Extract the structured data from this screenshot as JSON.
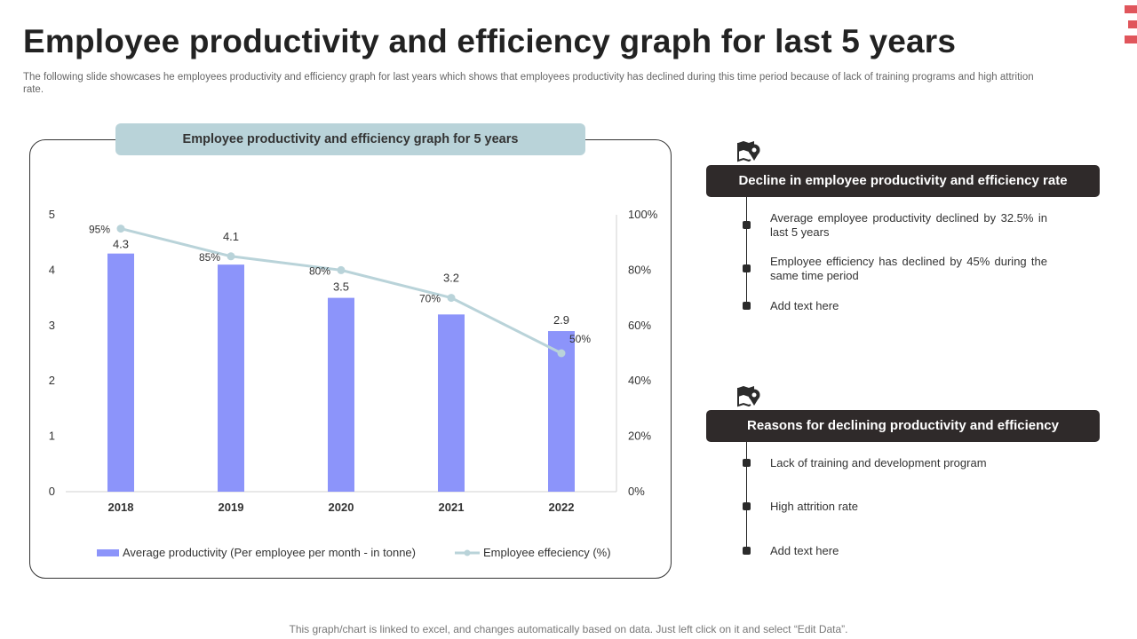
{
  "page": {
    "title": "Employee productivity and efficiency graph for last 5 years",
    "subtitle": "The following slide showcases he employees productivity and efficiency graph for last years which shows that employees productivity has declined during this time period because of lack of training programs and high attrition rate.",
    "footer": "This graph/chart is linked to excel,  and changes automatically based on data. Just left click on it and select “Edit Data”.",
    "accent_color": "#e0555b"
  },
  "chart_header": "Employee productivity and efficiency graph for 5 years",
  "chart_data": {
    "type": "bar",
    "categories": [
      "2018",
      "2019",
      "2020",
      "2021",
      "2022"
    ],
    "series": [
      {
        "name": "Average productivity (Per employee per month - in tonne)",
        "type": "bar",
        "axis": "left",
        "color": "#8c94fa",
        "values": [
          4.3,
          4.1,
          3.5,
          3.2,
          2.9
        ],
        "labels": [
          "4.3",
          "4.1",
          "3.5",
          "3.2",
          "2.9"
        ]
      },
      {
        "name": "Employee effeciency (%)",
        "type": "line",
        "axis": "right",
        "color": "#b9d3d9",
        "values": [
          95,
          85,
          80,
          70,
          50
        ],
        "labels": [
          "95%",
          "85%",
          "80%",
          "70%",
          "50%"
        ]
      }
    ],
    "ylim_left": [
      0,
      5
    ],
    "yticks_left": [
      "0",
      "1",
      "2",
      "3",
      "4",
      "5"
    ],
    "ylim_right": [
      0,
      100
    ],
    "yticks_right": [
      "0%",
      "20%",
      "40%",
      "60%",
      "80%",
      "100%"
    ],
    "grid": false,
    "legend": "bottom"
  },
  "panels": [
    {
      "header": "Decline in employee productivity and efficiency rate",
      "icon": "map-pin-icon",
      "items": [
        "Average employee productivity declined by 32.5% in last 5 years",
        "Employee  efficiency has declined by 45% during the same time period",
        "Add text here"
      ]
    },
    {
      "header": "Reasons for declining productivity and efficiency",
      "icon": "map-pin-icon",
      "items": [
        "Lack of training and development  program",
        "High attrition rate",
        "Add text here"
      ]
    }
  ]
}
